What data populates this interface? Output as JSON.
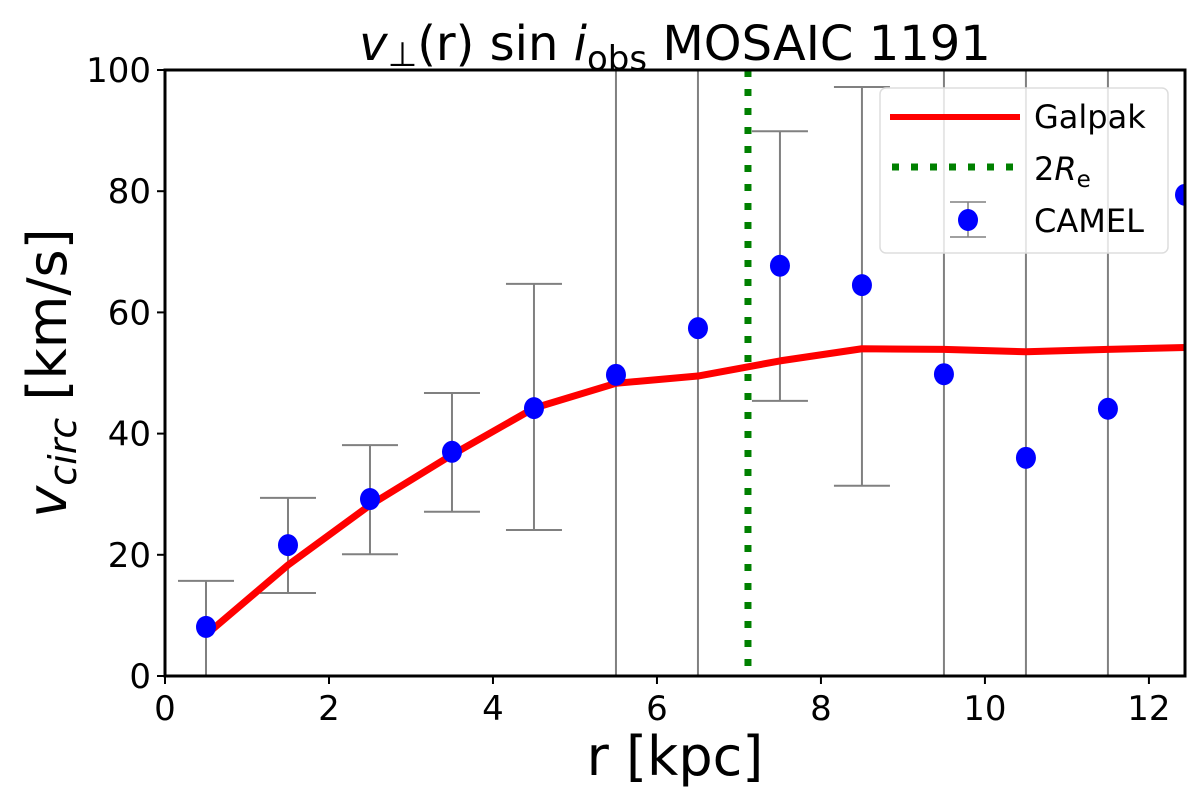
{
  "chart_data": {
    "type": "line",
    "title": {
      "v": "v",
      "perp": "⊥",
      "r_part": "(r) sin ",
      "i": "i",
      "obs": "obs",
      "rest": " MOSAIC 1191"
    },
    "xlabel": "r [kpc]",
    "ylabel": {
      "v": "v",
      "sub": "circ",
      "unit": " [km/s]"
    },
    "xlim": [
      0,
      12.44
    ],
    "ylim": [
      0,
      100
    ],
    "xticks": [
      "0",
      "2",
      "4",
      "6",
      "8",
      "10",
      "12"
    ],
    "yticks": [
      "0",
      "20",
      "40",
      "60",
      "80",
      "100"
    ],
    "grid": false,
    "legend": {
      "placement": "top-right",
      "entries": [
        {
          "label": "Galpak"
        },
        {
          "label_main": "2",
          "label_italic": "R",
          "label_sub": "e"
        },
        {
          "label": "CAMEL"
        }
      ]
    },
    "colors": {
      "galpak": "#ff0000",
      "re": "#008000",
      "camel": "#0000ff",
      "errorbar": "#808080"
    },
    "galpak": {
      "x": [
        0.5,
        1.5,
        2.5,
        3.5,
        4.5,
        5.5,
        6.5,
        7.5,
        8.5,
        9.5,
        10.5,
        11.5,
        12.5
      ],
      "y": [
        6.8,
        18.3,
        28.2,
        36.5,
        44.2,
        48.3,
        49.5,
        52.0,
        54.0,
        53.9,
        53.5,
        53.9,
        54.2
      ]
    },
    "two_re_x": 7.11,
    "camel": {
      "x": [
        0.5,
        1.5,
        2.5,
        3.5,
        4.5,
        5.5,
        6.5,
        7.5,
        8.5,
        9.5,
        10.5,
        11.5,
        12.5
      ],
      "y": [
        8.1,
        21.6,
        29.2,
        37.0,
        44.2,
        49.7,
        57.4,
        67.7,
        64.5,
        49.8,
        36.0,
        44.1,
        79.4
      ],
      "y_low": [
        0.0,
        13.7,
        20.1,
        27.1,
        24.1,
        -50,
        -50,
        45.4,
        31.4,
        -50,
        -50,
        -50,
        -50
      ],
      "y_high": [
        15.7,
        29.4,
        38.1,
        46.7,
        64.7,
        150,
        150,
        89.9,
        97.2,
        150,
        150,
        150,
        150
      ]
    }
  }
}
